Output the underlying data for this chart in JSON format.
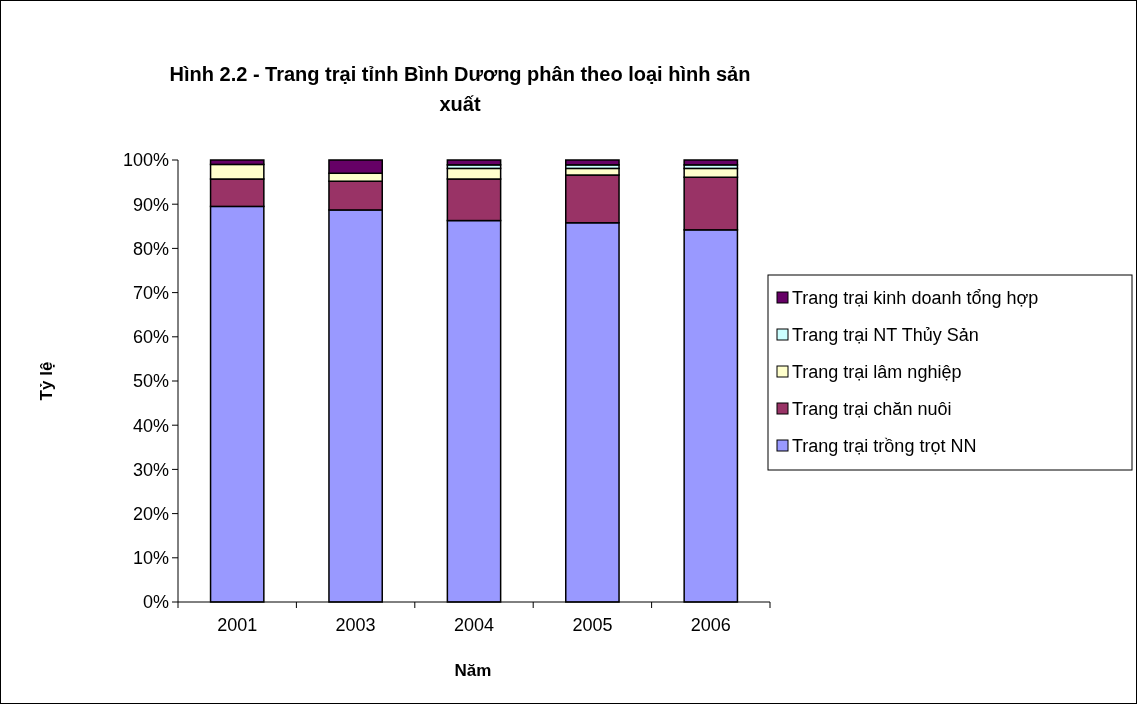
{
  "chart_data": {
    "type": "bar",
    "stacked": true,
    "title": "Hình 2.2 - Trang trại tỉnh Bình Dương phân theo loại hình sản xuất",
    "xlabel": "Năm",
    "ylabel": "Tỷ lệ",
    "categories": [
      "2001",
      "2003",
      "2004",
      "2005",
      "2006"
    ],
    "series": [
      {
        "name": "Trang trại trồng trọt NN",
        "color": "#9999ff",
        "values": [
          89.5,
          88.7,
          86.3,
          85.8,
          84.2
        ]
      },
      {
        "name": "Trang trại chăn nuôi",
        "color": "#993366",
        "values": [
          6.2,
          6.5,
          9.4,
          10.8,
          11.9
        ]
      },
      {
        "name": "Trang trại lâm nghiệp",
        "color": "#ffffcc",
        "values": [
          3.3,
          1.8,
          2.4,
          1.5,
          2.0
        ]
      },
      {
        "name": "Trang trại NT Thủy Sản",
        "color": "#ccffff",
        "values": [
          0,
          0,
          0.8,
          0.8,
          0.8
        ]
      },
      {
        "name": "Trang trại kinh doanh tổng hợp",
        "color": "#660066",
        "values": [
          1.0,
          3.0,
          1.1,
          1.1,
          1.1
        ]
      }
    ],
    "ylim": [
      0,
      100
    ],
    "yticks": [
      {
        "value": 0,
        "label": "0%"
      },
      {
        "value": 10,
        "label": "10%"
      },
      {
        "value": 20,
        "label": "20%"
      },
      {
        "value": 30,
        "label": "30%"
      },
      {
        "value": 40,
        "label": "40%"
      },
      {
        "value": 50,
        "label": "50%"
      },
      {
        "value": 60,
        "label": "60%"
      },
      {
        "value": 70,
        "label": "70%"
      },
      {
        "value": 80,
        "label": "80%"
      },
      {
        "value": 90,
        "label": "90%"
      },
      {
        "value": 100,
        "label": "100%"
      }
    ],
    "legend": "right",
    "grid": false
  }
}
